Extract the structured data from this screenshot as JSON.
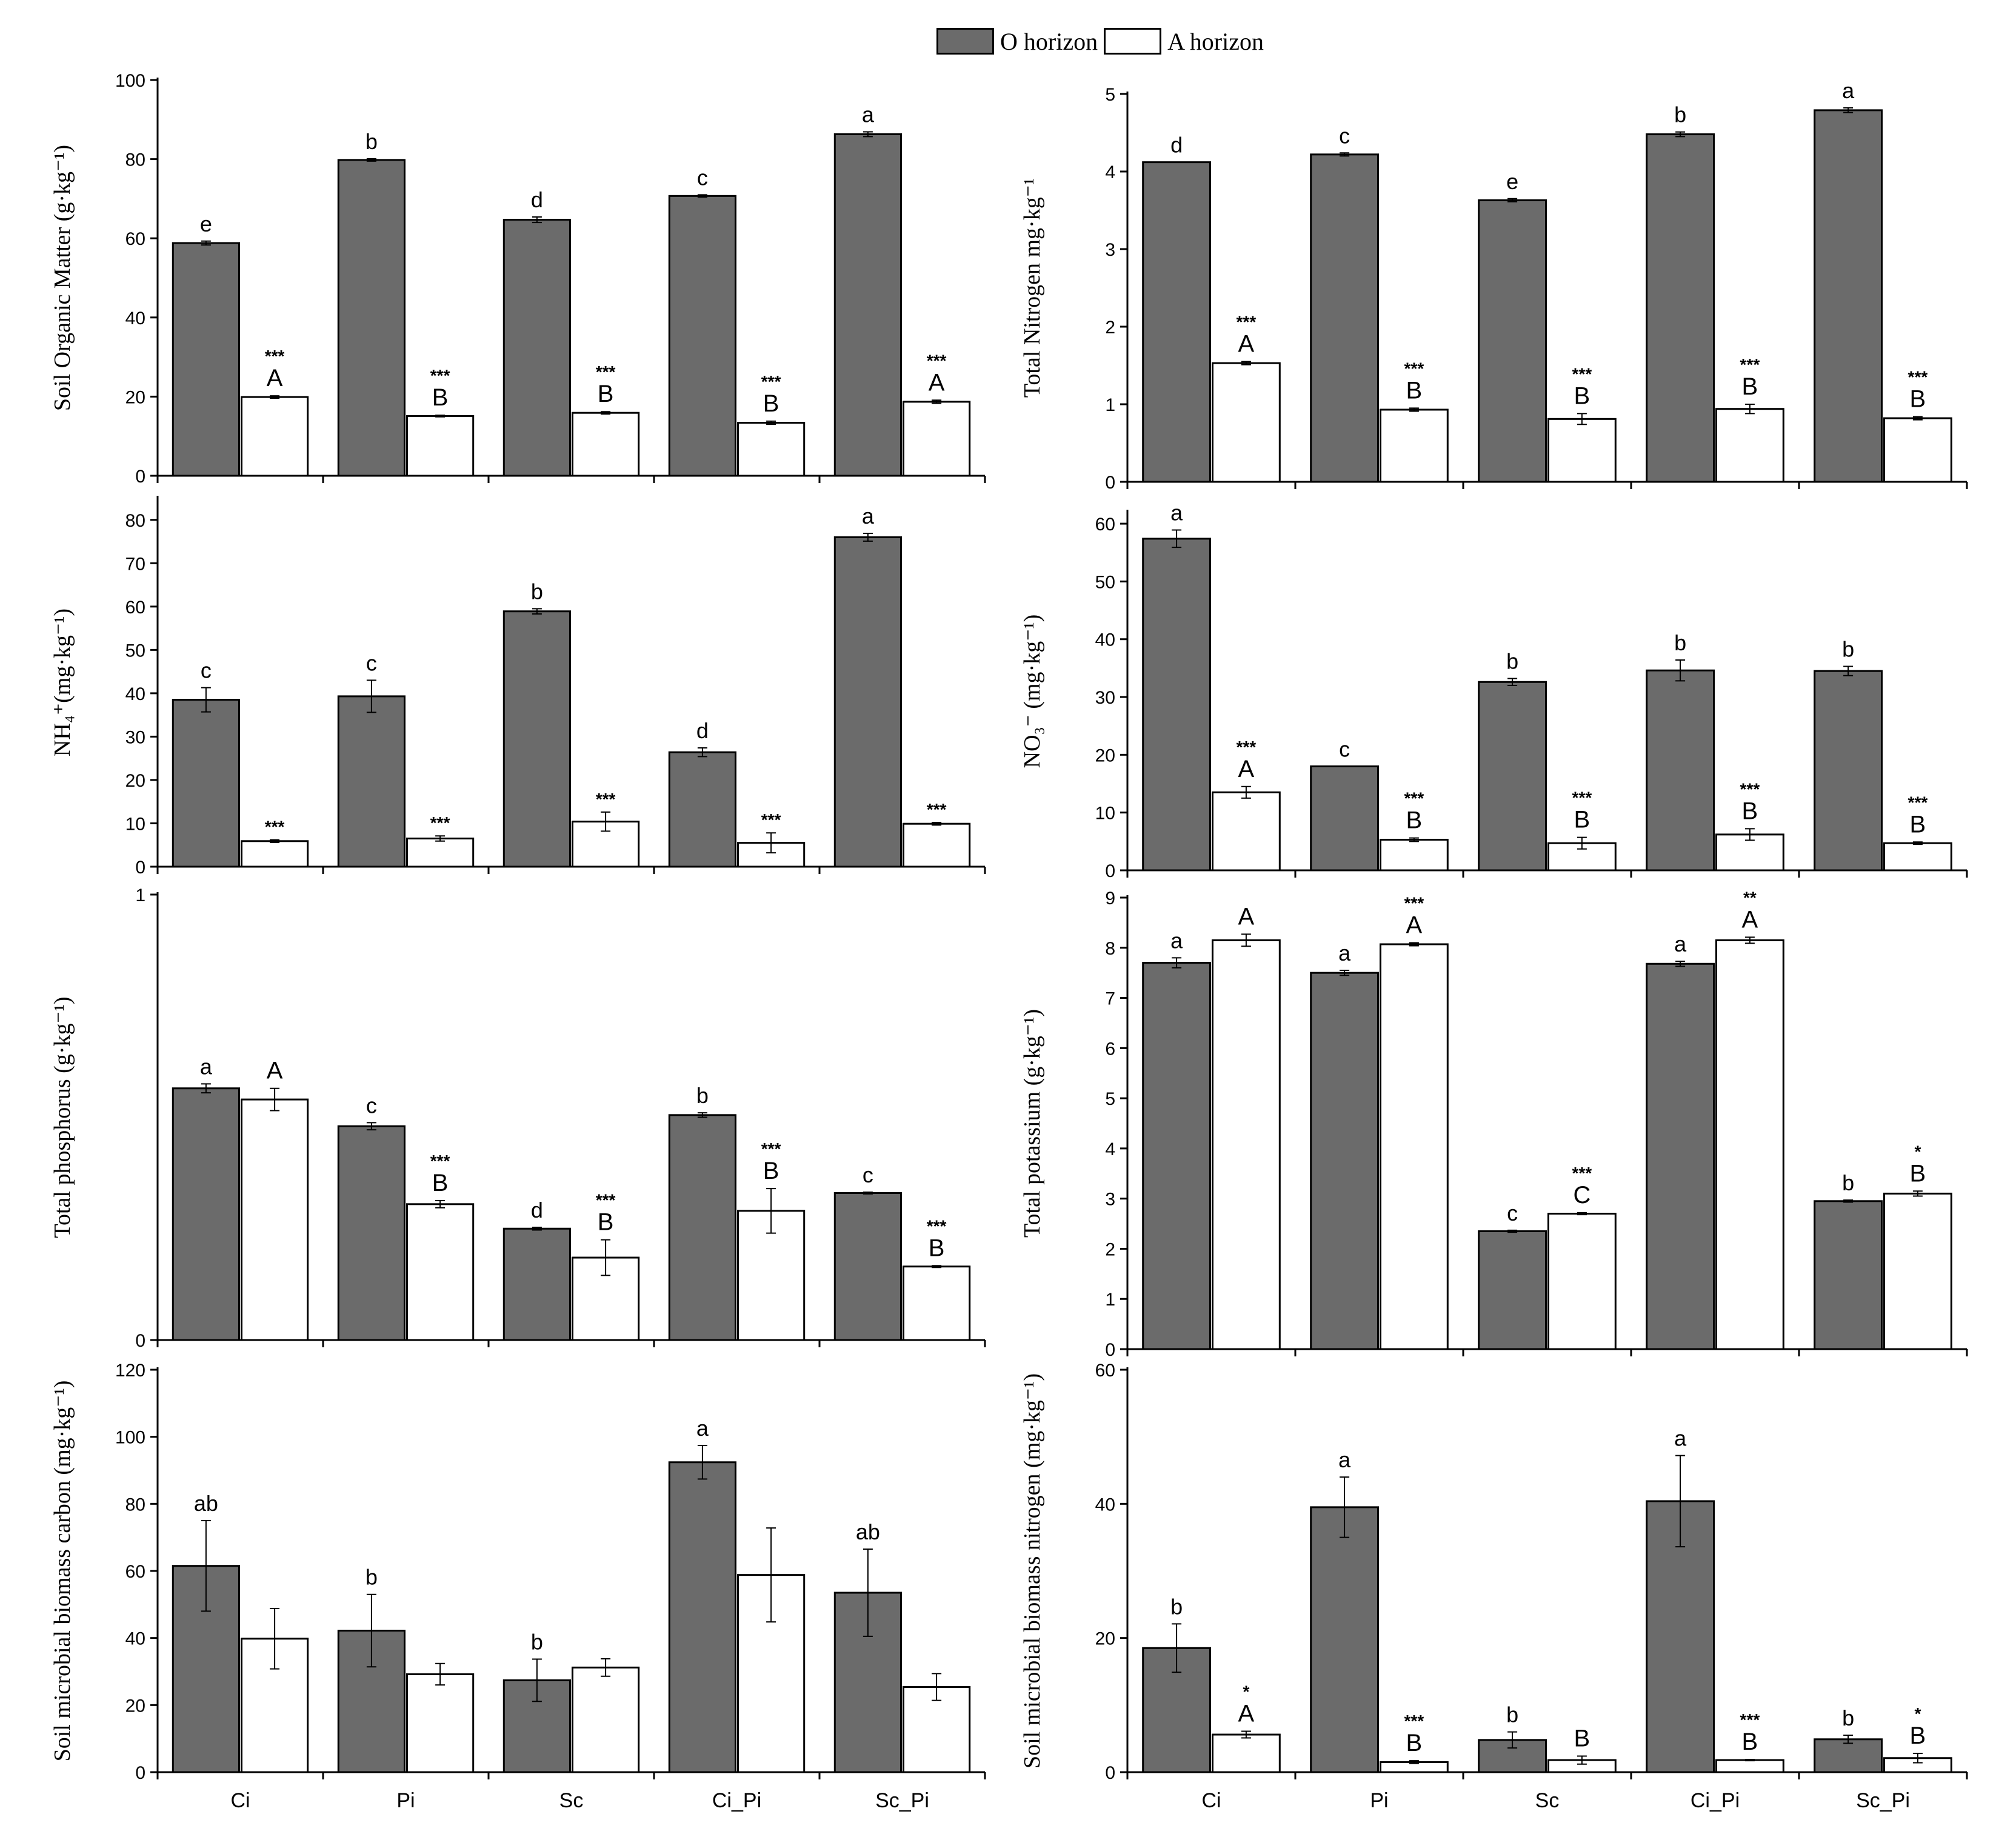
{
  "legend": {
    "o_label": "O horizon",
    "a_label": "A horizon"
  },
  "colors": {
    "o_fill": "#6b6b6b",
    "a_fill": "#ffffff",
    "stroke": "#000000"
  },
  "chart_data": [
    {
      "type": "bar",
      "id": "som",
      "ylabel": "Soil Organic Matter (g·kg⁻¹)",
      "categories": [
        "Ci",
        "Pi",
        "Sc",
        "Ci_Pi",
        "Sc_Pi"
      ],
      "ylim": [
        0,
        100
      ],
      "yticks": [
        0,
        20,
        40,
        60,
        80,
        100
      ],
      "show_xtick_labels": false,
      "series": [
        {
          "name": "O horizon",
          "values": [
            58.8,
            79.8,
            64.7,
            70.7,
            86.3
          ],
          "errors": [
            0.5,
            0.3,
            0.7,
            0.3,
            0.6
          ],
          "letters": [
            "e",
            "b",
            "d",
            "c",
            "a"
          ],
          "stars": [
            "",
            "",
            "",
            "",
            ""
          ]
        },
        {
          "name": "A horizon",
          "values": [
            19.9,
            15.1,
            15.9,
            13.4,
            18.7
          ],
          "errors": [
            0.3,
            0.2,
            0.3,
            0.4,
            0.4
          ],
          "letters": [
            "A",
            "B",
            "B",
            "B",
            "A"
          ],
          "stars": [
            "***",
            "***",
            "***",
            "***",
            "***"
          ]
        }
      ]
    },
    {
      "type": "bar",
      "id": "tn",
      "ylabel": "Total Nitrogen mg·kg⁻¹",
      "categories": [
        "Ci",
        "Pi",
        "Sc",
        "Ci_Pi",
        "Sc_Pi"
      ],
      "ylim": [
        0,
        5
      ],
      "yticks": [
        0,
        1,
        2,
        3,
        4,
        5
      ],
      "show_xtick_labels": false,
      "series": [
        {
          "name": "O horizon",
          "values": [
            4.12,
            4.22,
            3.63,
            4.48,
            4.79
          ],
          "errors": [
            0.0,
            0.02,
            0.02,
            0.03,
            0.03
          ],
          "letters": [
            "d",
            "c",
            "e",
            "b",
            "a"
          ],
          "stars": [
            "",
            "",
            "",
            "",
            ""
          ]
        },
        {
          "name": "A horizon",
          "values": [
            1.53,
            0.93,
            0.81,
            0.94,
            0.82
          ],
          "errors": [
            0.02,
            0.02,
            0.07,
            0.06,
            0.02
          ],
          "letters": [
            "A",
            "B",
            "B",
            "B",
            "B"
          ],
          "stars": [
            "***",
            "***",
            "***",
            "***",
            "***"
          ]
        }
      ]
    },
    {
      "type": "bar",
      "id": "nh4",
      "ylabel": "NH₄⁺(mg·kg⁻¹)",
      "categories": [
        "Ci",
        "Pi",
        "Sc",
        "Ci_Pi",
        "Sc_Pi"
      ],
      "ylim": [
        0,
        85
      ],
      "yticks": [
        0,
        10,
        20,
        30,
        40,
        50,
        60,
        70,
        80
      ],
      "show_xtick_labels": false,
      "series": [
        {
          "name": "O horizon",
          "values": [
            38.5,
            39.3,
            58.9,
            26.4,
            76.0
          ],
          "errors": [
            2.8,
            3.7,
            0.6,
            1.0,
            0.9
          ],
          "letters": [
            "c",
            "c",
            "b",
            "d",
            "a"
          ],
          "stars": [
            "",
            "",
            "",
            "",
            ""
          ]
        },
        {
          "name": "A horizon",
          "values": [
            5.9,
            6.5,
            10.4,
            5.5,
            9.9
          ],
          "errors": [
            0.3,
            0.6,
            2.2,
            2.3,
            0.3
          ],
          "letters": [
            "",
            "",
            "",
            "",
            ""
          ],
          "stars": [
            "***",
            "***",
            "***",
            "***",
            "***"
          ]
        }
      ]
    },
    {
      "type": "bar",
      "id": "no3",
      "ylabel": "NO₃⁻ (mg·kg⁻¹)",
      "categories": [
        "Ci",
        "Pi",
        "Sc",
        "Ci_Pi",
        "Sc_Pi"
      ],
      "ylim": [
        0,
        62
      ],
      "yticks": [
        0,
        10,
        20,
        30,
        40,
        50,
        60
      ],
      "show_xtick_labels": false,
      "series": [
        {
          "name": "O horizon",
          "values": [
            57.4,
            18.0,
            32.6,
            34.6,
            34.5
          ],
          "errors": [
            1.5,
            0.0,
            0.6,
            1.8,
            0.8
          ],
          "letters": [
            "a",
            "c",
            "b",
            "b",
            "b"
          ],
          "stars": [
            "",
            "",
            "",
            "",
            ""
          ]
        },
        {
          "name": "A horizon",
          "values": [
            13.5,
            5.3,
            4.7,
            6.2,
            4.7
          ],
          "errors": [
            1.0,
            0.3,
            1.0,
            1.0,
            0.2
          ],
          "letters": [
            "A",
            "B",
            "B",
            "B",
            "B"
          ],
          "stars": [
            "***",
            "***",
            "***",
            "***",
            "***"
          ]
        }
      ]
    },
    {
      "type": "bar",
      "id": "tp",
      "ylabel": "Total phosphorus (g·kg⁻¹)",
      "categories": [
        "Ci",
        "Pi",
        "Sc",
        "Ci_Pi",
        "Sc_Pi"
      ],
      "ylim": [
        0,
        1
      ],
      "yticks": [
        0,
        1
      ],
      "show_xtick_labels": false,
      "series": [
        {
          "name": "O horizon",
          "values": [
            0.565,
            0.48,
            0.25,
            0.505,
            0.33
          ],
          "errors": [
            0.01,
            0.008,
            0.003,
            0.005,
            0.002
          ],
          "letters": [
            "a",
            "c",
            "d",
            "b",
            "c"
          ],
          "stars": [
            "",
            "",
            "",
            "",
            ""
          ]
        },
        {
          "name": "A horizon",
          "values": [
            0.54,
            0.305,
            0.185,
            0.29,
            0.165
          ],
          "errors": [
            0.025,
            0.008,
            0.04,
            0.05,
            0.002
          ],
          "letters": [
            "A",
            "B",
            "B",
            "B",
            "B"
          ],
          "stars": [
            "",
            "***",
            "***",
            "***",
            "***"
          ]
        }
      ]
    },
    {
      "type": "bar",
      "id": "tk",
      "ylabel": "Total potassium (g·kg⁻¹)",
      "categories": [
        "Ci",
        "Pi",
        "Sc",
        "Ci_Pi",
        "Sc_Pi"
      ],
      "ylim": [
        0,
        9
      ],
      "yticks": [
        0,
        1,
        2,
        3,
        4,
        5,
        6,
        7,
        8,
        9
      ],
      "show_xtick_labels": false,
      "series": [
        {
          "name": "O horizon",
          "values": [
            7.7,
            7.5,
            2.35,
            7.68,
            2.95
          ],
          "errors": [
            0.1,
            0.05,
            0.02,
            0.05,
            0.02
          ],
          "letters": [
            "a",
            "a",
            "c",
            "a",
            "b"
          ],
          "stars": [
            "",
            "",
            "",
            "",
            ""
          ]
        },
        {
          "name": "A horizon",
          "values": [
            8.15,
            8.07,
            2.7,
            8.15,
            3.1
          ],
          "errors": [
            0.12,
            0.03,
            0.02,
            0.06,
            0.05
          ],
          "letters": [
            "A",
            "A",
            "C",
            "A",
            "B"
          ],
          "stars": [
            "",
            "***",
            "***",
            "**",
            "*"
          ]
        }
      ]
    },
    {
      "type": "bar",
      "id": "mbc",
      "ylabel": "Soil microbial biomass carbon (mg·kg⁻¹)",
      "categories": [
        "Ci",
        "Pi",
        "Sc",
        "Ci_Pi",
        "Sc_Pi"
      ],
      "ylim": [
        0,
        120
      ],
      "yticks": [
        0,
        20,
        40,
        60,
        80,
        100,
        120
      ],
      "show_xtick_labels": true,
      "series": [
        {
          "name": "O horizon",
          "values": [
            61.5,
            42.2,
            27.4,
            92.4,
            53.5
          ],
          "errors": [
            13.5,
            10.8,
            6.3,
            5.0,
            13.0
          ],
          "letters": [
            "ab",
            "b",
            "b",
            "a",
            "ab"
          ],
          "stars": [
            "",
            "",
            "",
            "",
            ""
          ]
        },
        {
          "name": "A horizon",
          "values": [
            39.8,
            29.2,
            31.2,
            58.8,
            25.4
          ],
          "errors": [
            9.0,
            3.2,
            2.6,
            14.0,
            4.0
          ],
          "letters": [
            "",
            "",
            "",
            "",
            ""
          ],
          "stars": [
            "",
            "",
            "",
            "",
            ""
          ]
        }
      ]
    },
    {
      "type": "bar",
      "id": "mbn",
      "ylabel": "Soil microbial biomass nitrogen (mg·kg⁻¹)",
      "categories": [
        "Ci",
        "Pi",
        "Sc",
        "Ci_Pi",
        "Sc_Pi"
      ],
      "ylim": [
        0,
        60
      ],
      "yticks": [
        0,
        20,
        40,
        60
      ],
      "show_xtick_labels": true,
      "series": [
        {
          "name": "O horizon",
          "values": [
            18.5,
            39.5,
            4.8,
            40.4,
            4.9
          ],
          "errors": [
            3.6,
            4.5,
            1.2,
            6.8,
            0.6
          ],
          "letters": [
            "b",
            "a",
            "b",
            "a",
            "b"
          ],
          "stars": [
            "",
            "",
            "",
            "",
            ""
          ]
        },
        {
          "name": "A horizon",
          "values": [
            5.6,
            1.5,
            1.8,
            1.8,
            2.1
          ],
          "errors": [
            0.5,
            0.2,
            0.6,
            0.1,
            0.7
          ],
          "letters": [
            "A",
            "B",
            "B",
            "B",
            "B"
          ],
          "stars": [
            "*",
            "***",
            "",
            "***",
            "*"
          ]
        }
      ]
    }
  ]
}
